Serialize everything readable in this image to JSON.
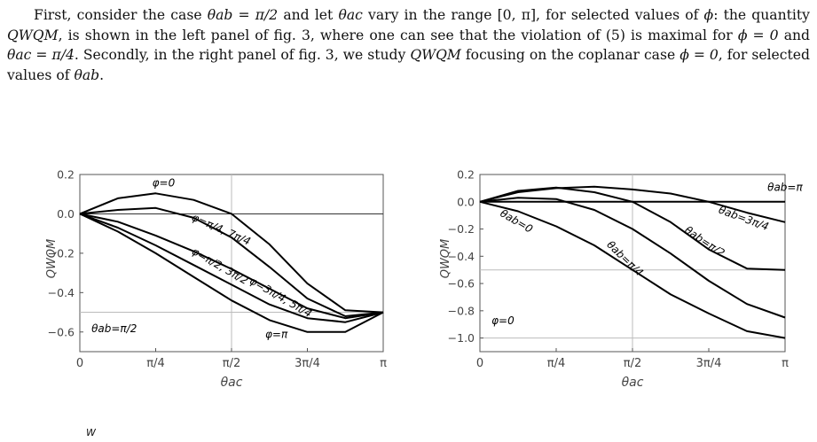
{
  "paragraph": {
    "line1_part1": "First, consider the case ",
    "line1_math1": "θab = π/2",
    "line1_part2": " and let ",
    "line1_math2": "θac",
    "line1_part3": " vary in the range [0, π], for selected values of",
    "line2_part1": "ϕ",
    "line2_part2": ": the quantity ",
    "line2_math1": "QWQM",
    "line2_part3": ", is shown in the left panel of fig. 3, where one can see that the violation",
    "line3_part1": "of (5) is maximal for ",
    "line3_math1": "ϕ = 0",
    "line3_part2": " and ",
    "line3_math2": "θac = π/4",
    "line3_part3": ". Secondly, in the right panel of fig. 3, we study ",
    "line3_math3": "QWQM",
    "line4_part1": "focusing on the coplanar case ",
    "line4_math1": "ϕ = 0",
    "line4_part2": ", for selected values of ",
    "line4_math2": "θab",
    "line4_part3": "."
  },
  "caption_fragment": "W",
  "chart_data": [
    {
      "type": "line",
      "panel": "left",
      "xlabel": "θac",
      "ylabel": "QWQM",
      "xlim": [
        0,
        3.14159
      ],
      "ylim": [
        -0.7,
        0.2
      ],
      "x_ticks": [
        0,
        0.7854,
        1.5708,
        2.3562,
        3.14159
      ],
      "x_tick_labels": [
        "0",
        "π/4",
        "π/2",
        "3π/4",
        "π"
      ],
      "y_ticks": [
        0.2,
        0.0,
        -0.2,
        -0.4,
        -0.6
      ],
      "y_tick_labels": [
        "0.2",
        "0.0",
        "−0.2",
        "−0.4",
        "−0.6"
      ],
      "reference_lines": {
        "h": [
          0.0,
          -0.5
        ],
        "v": [
          1.5708
        ]
      },
      "annotation": "θab=π/2",
      "x": [
        0,
        0.3927,
        0.7854,
        1.1781,
        1.5708,
        1.9635,
        2.3562,
        2.7489,
        3.14159
      ],
      "series": [
        {
          "name": "φ=0",
          "values": [
            0,
            0.079,
            0.104,
            0.071,
            0.0,
            -0.155,
            -0.354,
            -0.49,
            -0.5
          ]
        },
        {
          "name": "φ=π/4, 7π/4",
          "values": [
            0,
            0.02,
            0.03,
            -0.02,
            -0.12,
            -0.27,
            -0.43,
            -0.52,
            -0.5
          ]
        },
        {
          "name": "φ=π/2, 3π/2",
          "values": [
            0,
            -0.04,
            -0.11,
            -0.19,
            -0.28,
            -0.38,
            -0.48,
            -0.53,
            -0.5
          ]
        },
        {
          "name": "φ=3π/4, 5π/4",
          "values": [
            0,
            -0.07,
            -0.16,
            -0.26,
            -0.36,
            -0.46,
            -0.53,
            -0.55,
            -0.5
          ]
        },
        {
          "name": "φ=π",
          "values": [
            0,
            -0.09,
            -0.2,
            -0.32,
            -0.44,
            -0.54,
            -0.6,
            -0.6,
            -0.5
          ]
        }
      ]
    },
    {
      "type": "line",
      "panel": "right",
      "xlabel": "θac",
      "ylabel": "QWQM",
      "xlim": [
        0,
        3.14159
      ],
      "ylim": [
        -1.1,
        0.2
      ],
      "x_ticks": [
        0,
        0.7854,
        1.5708,
        2.3562,
        3.14159
      ],
      "x_tick_labels": [
        "0",
        "π/4",
        "π/2",
        "3π/4",
        "π"
      ],
      "y_ticks": [
        0.2,
        0.0,
        -0.2,
        -0.4,
        -0.6,
        -0.8,
        -1.0
      ],
      "y_tick_labels": [
        "0.2",
        "0.0",
        "−0.2",
        "−0.4",
        "−0.6",
        "−0.8",
        "−1.0"
      ],
      "reference_lines": {
        "h": [
          -0.5,
          -1.0
        ],
        "v": [
          1.5708
        ]
      },
      "annotation": "φ=0",
      "x": [
        0,
        0.3927,
        0.7854,
        1.1781,
        1.5708,
        1.9635,
        2.3562,
        2.7489,
        3.14159
      ],
      "series": [
        {
          "name": "θab=0",
          "values": [
            0,
            -0.07,
            -0.18,
            -0.32,
            -0.5,
            -0.68,
            -0.82,
            -0.95,
            -1.0
          ]
        },
        {
          "name": "θab=π/4",
          "values": [
            0,
            0.03,
            0.02,
            -0.06,
            -0.2,
            -0.38,
            -0.58,
            -0.75,
            -0.85
          ]
        },
        {
          "name": "θab=π/2",
          "values": [
            0,
            0.08,
            0.104,
            0.07,
            0.0,
            -0.15,
            -0.35,
            -0.49,
            -0.5
          ]
        },
        {
          "name": "θab=3π/4",
          "values": [
            0,
            0.07,
            0.1,
            0.11,
            0.09,
            0.06,
            0.0,
            -0.08,
            -0.15
          ]
        },
        {
          "name": "θab=π",
          "values": [
            0,
            0,
            0,
            0,
            0,
            0,
            0,
            0,
            0
          ]
        }
      ]
    }
  ]
}
